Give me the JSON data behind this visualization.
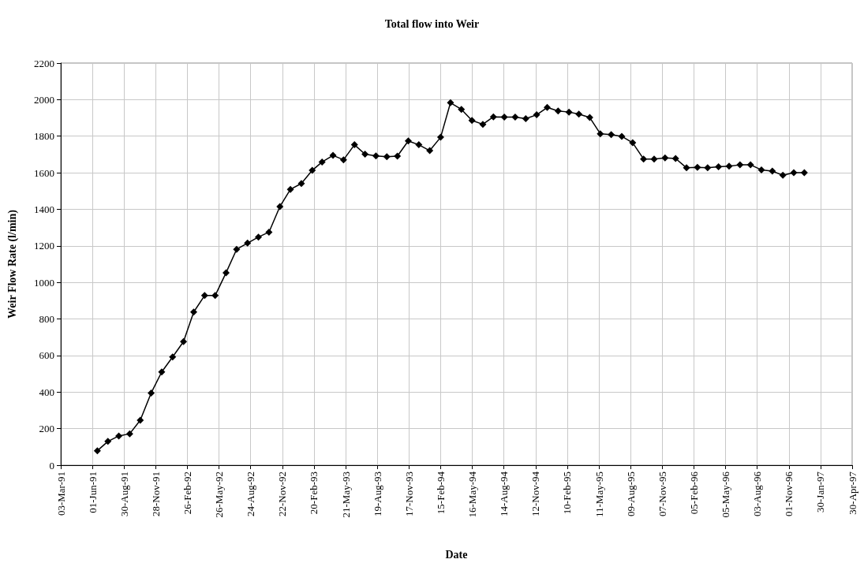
{
  "chart_data": {
    "type": "line",
    "title": "Total flow into Weir",
    "xlabel": "Date",
    "ylabel": "Weir Flow Rate (l/min)",
    "x": [
      "1991-06-15",
      "1991-07-15",
      "1991-08-15",
      "1991-09-15",
      "1991-10-15",
      "1991-11-15",
      "1991-12-15",
      "1992-01-15",
      "1992-02-15",
      "1992-03-15",
      "1992-04-15",
      "1992-05-15",
      "1992-06-15",
      "1992-07-15",
      "1992-08-15",
      "1992-09-15",
      "1992-10-15",
      "1992-11-15",
      "1992-12-15",
      "1993-01-15",
      "1993-02-15",
      "1993-03-15",
      "1993-04-15",
      "1993-05-15",
      "1993-06-15",
      "1993-07-15",
      "1993-08-15",
      "1993-09-15",
      "1993-10-15",
      "1993-11-15",
      "1993-12-15",
      "1994-01-15",
      "1994-02-15",
      "1994-03-15",
      "1994-04-15",
      "1994-05-15",
      "1994-06-15",
      "1994-07-15",
      "1994-08-15",
      "1994-09-15",
      "1994-10-15",
      "1994-11-15",
      "1994-12-15",
      "1995-01-15",
      "1995-02-15",
      "1995-03-15",
      "1995-04-15",
      "1995-05-15",
      "1995-06-15",
      "1995-07-15",
      "1995-08-15",
      "1995-09-15",
      "1995-10-15",
      "1995-11-15",
      "1995-12-15",
      "1996-01-15",
      "1996-02-15",
      "1996-03-15",
      "1996-04-15",
      "1996-05-15",
      "1996-06-15",
      "1996-07-15",
      "1996-08-15",
      "1996-09-15",
      "1996-10-15",
      "1996-11-15",
      "1996-12-15"
    ],
    "series": [
      {
        "color": "#000000",
        "values": [
          79,
          130,
          160,
          172,
          246,
          395,
          510,
          592,
          676,
          838,
          928,
          928,
          1053,
          1181,
          1215,
          1248,
          1275,
          1415,
          1509,
          1541,
          1613,
          1659,
          1695,
          1671,
          1753,
          1702,
          1692,
          1688,
          1691,
          1774,
          1753,
          1721,
          1794,
          1983,
          1947,
          1886,
          1865,
          1906,
          1905,
          1905,
          1896,
          1917,
          1957,
          1938,
          1932,
          1921,
          1902,
          1813,
          1809,
          1799,
          1764,
          1675,
          1675,
          1681,
          1678,
          1627,
          1630,
          1627,
          1633,
          1636,
          1643,
          1643,
          1616,
          1609,
          1586,
          1600,
          1600
        ]
      }
    ],
    "xlim": [
      "1991-03-03",
      "1997-04-30"
    ],
    "xticks": [
      {
        "value": "1991-03-03",
        "label": "03-Mar-91"
      },
      {
        "value": "1991-06-01",
        "label": "01-Jun-91"
      },
      {
        "value": "1991-08-30",
        "label": "30-Aug-91"
      },
      {
        "value": "1991-11-28",
        "label": "28-Nov-91"
      },
      {
        "value": "1992-02-26",
        "label": "26-Feb-92"
      },
      {
        "value": "1992-05-26",
        "label": "26-May-92"
      },
      {
        "value": "1992-08-24",
        "label": "24-Aug-92"
      },
      {
        "value": "1992-11-22",
        "label": "22-Nov-92"
      },
      {
        "value": "1993-02-20",
        "label": "20-Feb-93"
      },
      {
        "value": "1993-05-21",
        "label": "21-May-93"
      },
      {
        "value": "1993-08-19",
        "label": "19-Aug-93"
      },
      {
        "value": "1993-11-17",
        "label": "17-Nov-93"
      },
      {
        "value": "1994-02-15",
        "label": "15-Feb-94"
      },
      {
        "value": "1994-05-16",
        "label": "16-May-94"
      },
      {
        "value": "1994-08-14",
        "label": "14-Aug-94"
      },
      {
        "value": "1994-11-12",
        "label": "12-Nov-94"
      },
      {
        "value": "1995-02-10",
        "label": "10-Feb-95"
      },
      {
        "value": "1995-05-11",
        "label": "11-May-95"
      },
      {
        "value": "1995-08-09",
        "label": "09-Aug-95"
      },
      {
        "value": "1995-11-07",
        "label": "07-Nov-95"
      },
      {
        "value": "1996-02-05",
        "label": "05-Feb-96"
      },
      {
        "value": "1996-05-05",
        "label": "05-May-96"
      },
      {
        "value": "1996-08-03",
        "label": "03-Aug-96"
      },
      {
        "value": "1996-11-01",
        "label": "01-Nov-96"
      },
      {
        "value": "1997-01-30",
        "label": "30-Jan-97"
      },
      {
        "value": "1997-04-30",
        "label": "30-Apr-97"
      }
    ],
    "ylim": [
      0,
      2200
    ],
    "yticks": [
      0,
      200,
      400,
      600,
      800,
      1000,
      1200,
      1400,
      1600,
      1800,
      2000,
      2200
    ],
    "grid": true,
    "marker": "diamond",
    "line_style": "solid"
  }
}
